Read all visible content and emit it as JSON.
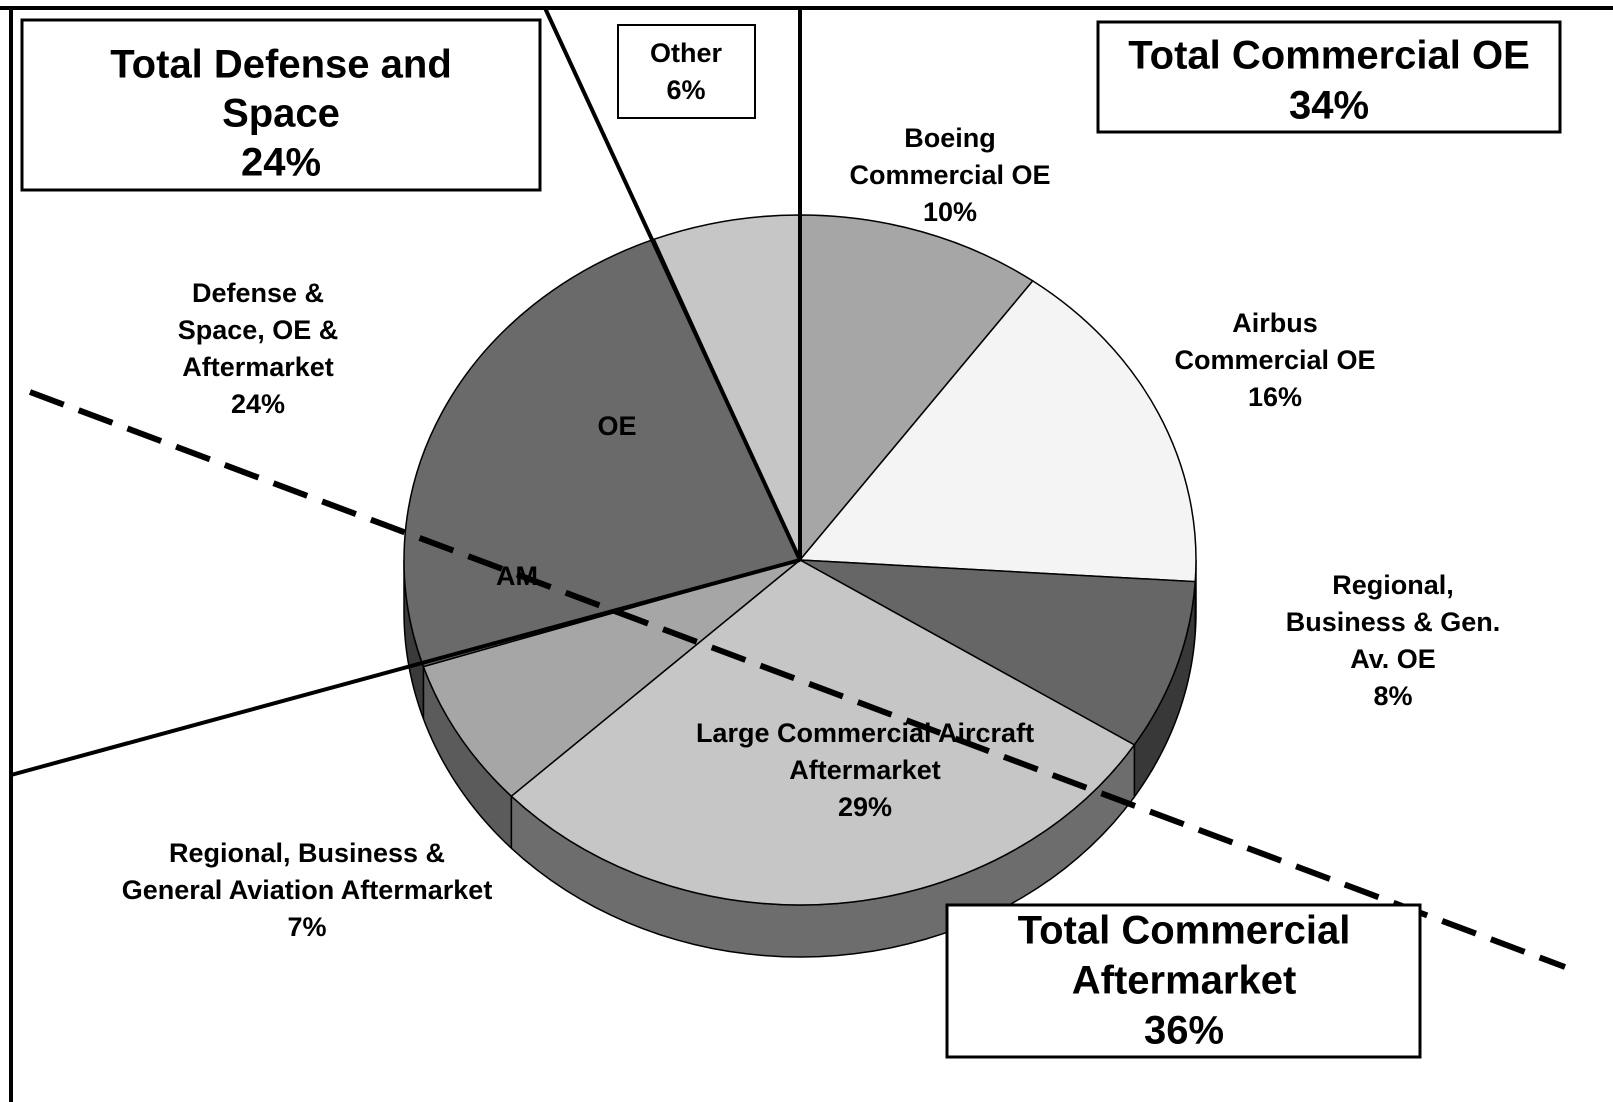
{
  "chart_data": {
    "type": "pie3d",
    "labels": [
      [
        "Boeing",
        "Commercial OE"
      ],
      [
        "Airbus",
        "Commercial OE"
      ],
      [
        "Regional,",
        "Business & Gen.",
        "Av. OE"
      ],
      [
        "Large Commercial Aircraft",
        "Aftermarket"
      ],
      [
        "Regional, Business &",
        "General  Aviation Aftermarket"
      ],
      [
        "Defense &",
        "Space, OE &",
        "Aftermarket"
      ],
      [
        "Other"
      ]
    ],
    "values": [
      10,
      16,
      8,
      29,
      7,
      24,
      6
    ],
    "value_labels": [
      "10%",
      "16%",
      "8%",
      "29%",
      "7%",
      "24%",
      "6%"
    ],
    "colors": [
      "#a6a6a6",
      "#f4f4f4",
      "#666666",
      "#c6c6c6",
      "#a6a6a6",
      "#6a6a6a",
      "#c6c6c6"
    ],
    "annotations": [
      "OE",
      "AM"
    ],
    "groups": [
      {
        "title": [
          "Total Defense and",
          "Space"
        ],
        "value_label": "24%"
      },
      {
        "title": [
          "Total Commercial OE"
        ],
        "value_label": "34%"
      },
      {
        "title": [
          "Total Commercial",
          "Aftermarket"
        ],
        "value_label": "36%"
      }
    ]
  }
}
